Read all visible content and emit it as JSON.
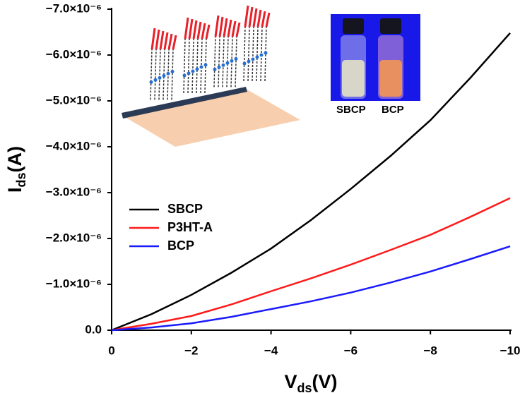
{
  "chart_data": {
    "type": "line",
    "x_label": {
      "symbol": "V",
      "subscript": "ds",
      "unit": "(V)"
    },
    "y_label": {
      "symbol": "I",
      "subscript": "ds",
      "unit": "(A)"
    },
    "x": [
      0,
      -1,
      -2,
      -3,
      -4,
      -5,
      -6,
      -7,
      -8,
      -9,
      -10
    ],
    "series": [
      {
        "name": "SBCP",
        "color": "#000000",
        "values": [
          0,
          -3.5e-07,
          -7.7e-07,
          -1.25e-06,
          -1.78e-06,
          -2.4e-06,
          -3.08e-06,
          -3.8e-06,
          -4.58e-06,
          -5.5e-06,
          -6.48e-06
        ]
      },
      {
        "name": "P3HT-A",
        "color": "#ff1a1a",
        "values": [
          0,
          -1.4e-07,
          -3.1e-07,
          -5.6e-07,
          -8.5e-07,
          -1.13e-06,
          -1.43e-06,
          -1.75e-06,
          -2.08e-06,
          -2.47e-06,
          -2.88e-06
        ]
      },
      {
        "name": "BCP",
        "color": "#1a1aff",
        "values": [
          0,
          -6e-08,
          -1.5e-07,
          -2.9e-07,
          -4.6e-07,
          -6.3e-07,
          -8.2e-07,
          -1.04e-06,
          -1.28e-06,
          -1.55e-06,
          -1.83e-06
        ]
      }
    ],
    "xlim": [
      0,
      -10
    ],
    "xticks": [
      0,
      {
        "value": -2,
        "label": "−2"
      },
      {
        "value": -4,
        "label": "−4"
      },
      {
        "value": -6,
        "label": "−6"
      },
      {
        "value": -8,
        "label": "−8"
      },
      {
        "value": -10,
        "label": "−10"
      }
    ],
    "ylim": [
      0,
      -7e-06
    ],
    "yticks": [
      {
        "value": 0,
        "label": "0.0"
      },
      {
        "value": -1e-06,
        "label": "−1.0×10⁻⁶"
      },
      {
        "value": -2e-06,
        "label": "−2.0×10⁻⁶"
      },
      {
        "value": -3e-06,
        "label": "−3.0×10⁻⁶"
      },
      {
        "value": -4e-06,
        "label": "−4.0×10⁻⁶"
      },
      {
        "value": -5e-06,
        "label": "−5.0×10⁻⁶"
      },
      {
        "value": -6e-06,
        "label": "−6.0×10⁻⁶"
      },
      {
        "value": -7e-06,
        "label": "−7.0×10⁻⁶"
      }
    ],
    "grid": false,
    "legend": "left",
    "inset_labels": [
      "SBCP",
      "BCP"
    ]
  }
}
